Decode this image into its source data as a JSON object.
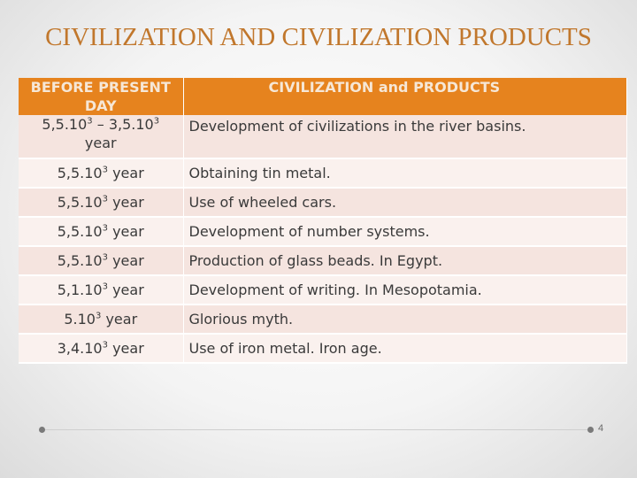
{
  "title": "CIVILIZATION AND CIVILIZATION PRODUCTS",
  "table": {
    "headers": [
      "BEFORE PRESENT DAY",
      "CIVILIZATION and PRODUCTS"
    ],
    "rows": [
      {
        "date_main": "5,5.10",
        "date_exp": "3",
        "date_mid": " – 3,5.10",
        "date_exp2": "3",
        "date_suffix": " year",
        "event": "Development of civilizations in the river basins."
      },
      {
        "date_main": "5,5.10",
        "date_exp": "3",
        "date_suffix": " year",
        "event": "Obtaining tin metal."
      },
      {
        "date_main": "5,5.10",
        "date_exp": "3",
        "date_suffix": " year",
        "event": "Use of wheeled cars."
      },
      {
        "date_main": "5,5.10",
        "date_exp": "3",
        "date_suffix": " year",
        "event": "Development of number systems."
      },
      {
        "date_main": "5,5.10",
        "date_exp": "3",
        "date_suffix": " year",
        "event": "Production of glass beads. In Egypt."
      },
      {
        "date_main": "5,1.10",
        "date_exp": "3",
        "date_suffix": " year",
        "event": "Development of writing. In Mesopotamia."
      },
      {
        "date_main": "5.10",
        "date_exp": "3",
        "date_suffix": " year",
        "event": "Glorious myth."
      },
      {
        "date_main": "3,4.10",
        "date_exp": "3",
        "date_suffix": " year",
        "event": "Use of iron metal. Iron age."
      }
    ]
  },
  "page_number": "4",
  "colors": {
    "title": "#c1772c",
    "header_bg": "#e6831e",
    "row_odd": "#f5e4df",
    "row_even": "#faf1ee"
  }
}
